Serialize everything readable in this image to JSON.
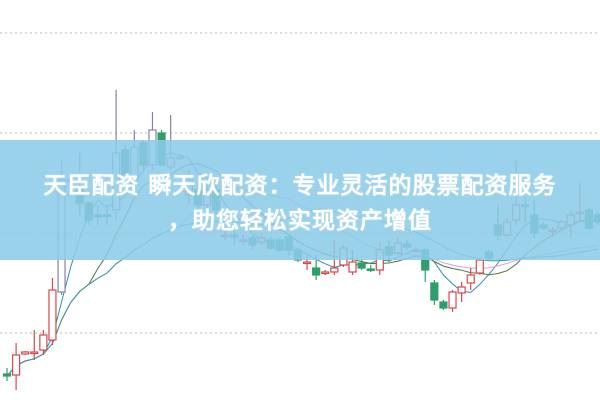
{
  "banner": {
    "line1": "天臣配资 瞬天欣配资：专业灵活的股票配资服务",
    "line2": "，助您轻松实现资产增值"
  },
  "colors": {
    "up": "#d9464a",
    "up_alt": "#8c7fa6",
    "down": "#2f9e6c",
    "grid": "#b8b8b8",
    "banner": "#8ccbe8",
    "ma": [
      "#2f8fb3",
      "#4d7a3a",
      "#e69ad6",
      "#2f9aa0"
    ]
  },
  "chart_data": {
    "type": "candlestick",
    "title": "",
    "xlabel": "",
    "ylabel": "",
    "ylim": [
      0,
      40
    ],
    "grid": true,
    "moving_averages": [
      5,
      10,
      20,
      30
    ],
    "candles_ohlc": [
      [
        2.6,
        3.2,
        1.9,
        2.4
      ],
      [
        2.5,
        5.7,
        1.0,
        4.5
      ],
      [
        4.6,
        4.9,
        4.5,
        4.8
      ],
      [
        4.7,
        7.0,
        4.0,
        4.8
      ],
      [
        5.0,
        7.0,
        4.5,
        6.5
      ],
      [
        6.0,
        12.2,
        5.5,
        11.0
      ],
      [
        10.8,
        24.0,
        10.5,
        22.0
      ],
      [
        22.0,
        22.2,
        21.8,
        22.0
      ],
      [
        21.3,
        24.7,
        18.5,
        19.7
      ],
      [
        19.7,
        19.8,
        17.5,
        18.0
      ],
      [
        18.5,
        19.5,
        17.5,
        18.3
      ],
      [
        18.5,
        19.5,
        17.5,
        18.4
      ],
      [
        19.0,
        31.0,
        18.0,
        24.7
      ],
      [
        25.0,
        25.5,
        22.0,
        22.5
      ],
      [
        21.5,
        27.0,
        21.0,
        25.3
      ],
      [
        25.7,
        26.0,
        23.0,
        23.5
      ],
      [
        23.5,
        28.8,
        23.0,
        27.0
      ],
      [
        26.7,
        27.0,
        23.5,
        23.5
      ],
      [
        23.3,
        28.5,
        23.0,
        24.2
      ],
      [
        24.3,
        24.5,
        24.0,
        24.3
      ],
      [
        20.5,
        23.0,
        19.5,
        22.0
      ],
      [
        21.0,
        21.5,
        19.0,
        19.5
      ],
      [
        19.5,
        21.5,
        19.0,
        21.0
      ],
      [
        21.0,
        21.5,
        18.5,
        19.0
      ],
      [
        16.5,
        17.5,
        16.0,
        16.5
      ],
      [
        16.5,
        17.0,
        15.5,
        16.3
      ],
      [
        16.0,
        16.5,
        15.5,
        16.0
      ],
      [
        16.2,
        16.5,
        15.0,
        15.5
      ],
      [
        15.8,
        16.5,
        15.5,
        16.2
      ],
      [
        16.0,
        16.3,
        15.0,
        15.2
      ],
      [
        16.0,
        16.2,
        14.8,
        15.0
      ],
      [
        16.3,
        16.5,
        14.5,
        15.0
      ],
      [
        15.0,
        15.2,
        13.8,
        14.0
      ],
      [
        13.8,
        14.5,
        13.0,
        13.8
      ],
      [
        13.2,
        14.5,
        12.0,
        12.5
      ],
      [
        12.8,
        13.0,
        12.5,
        12.8
      ],
      [
        12.8,
        16.0,
        12.5,
        13.2
      ],
      [
        13.5,
        15.5,
        13.3,
        15.2
      ],
      [
        12.8,
        15.0,
        12.5,
        13.8
      ],
      [
        13.7,
        14.0,
        13.0,
        13.2
      ],
      [
        13.1,
        13.5,
        12.8,
        13.0
      ],
      [
        13.0,
        15.8,
        12.5,
        15.0
      ],
      [
        15.3,
        16.0,
        13.8,
        14.5
      ],
      [
        14.7,
        16.3,
        14.5,
        15.7
      ],
      [
        15.6,
        16.0,
        15.0,
        15.3
      ],
      [
        15.0,
        15.3,
        14.8,
        15.0
      ],
      [
        15.0,
        15.2,
        11.8,
        13.0
      ],
      [
        11.7,
        12.0,
        9.5,
        10.0
      ],
      [
        9.8,
        10.0,
        9.0,
        9.2
      ],
      [
        9.2,
        11.0,
        8.8,
        10.8
      ],
      [
        10.7,
        11.8,
        9.8,
        11.3
      ],
      [
        11.7,
        13.2,
        11.0,
        12.5
      ],
      [
        12.7,
        14.2,
        12.5,
        14.0
      ],
      [
        14.8,
        15.0,
        14.0,
        14.2
      ],
      [
        17.5,
        19.5,
        16.0,
        16.5
      ],
      [
        16.5,
        18.2,
        16.3,
        17.8
      ],
      [
        18.0,
        24.0,
        17.5,
        19.5
      ],
      [
        19.5,
        20.3,
        17.8,
        19.4
      ],
      [
        18.5,
        20.0,
        16.2,
        16.7
      ],
      [
        17.5,
        17.8,
        17.0,
        17.2
      ],
      [
        17.0,
        17.3,
        16.3,
        17.0
      ],
      [
        17.2,
        18.0,
        17.0,
        17.8
      ],
      [
        17.5,
        19.0,
        16.2,
        18.5
      ],
      [
        18.8,
        21.7,
        18.0,
        18.8
      ],
      [
        19.0,
        19.2,
        17.0,
        17.2
      ],
      [
        18.5,
        18.8,
        17.5,
        17.8
      ]
    ]
  }
}
